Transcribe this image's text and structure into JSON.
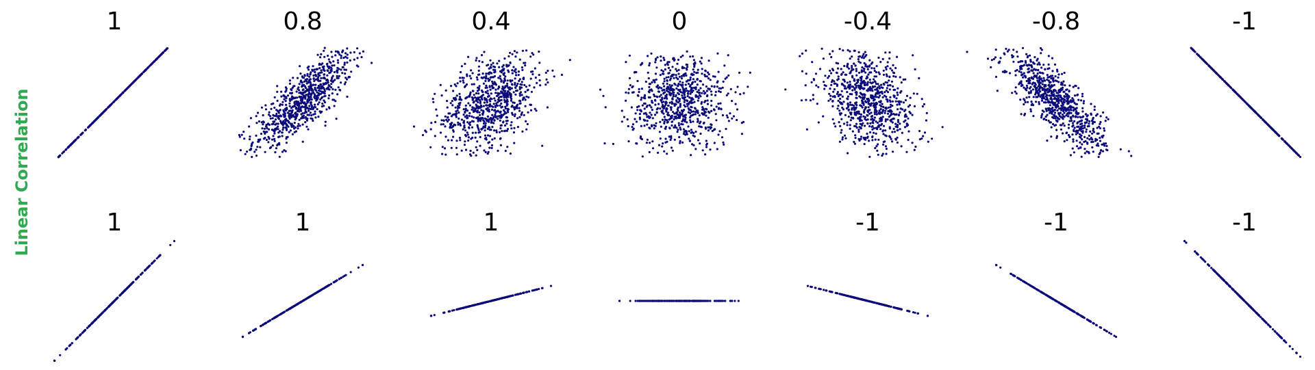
{
  "figure": {
    "side_label": "Linear Correlation",
    "side_label_color": "#2eaa4f",
    "point_color": "#0b0b7a"
  },
  "chart_data": [
    {
      "type": "scatter",
      "group": "scatter-clouds",
      "grid": false,
      "axes_visible": false,
      "panels": [
        {
          "title": "1",
          "correlation": 1,
          "spread": 1.0,
          "n_points": 300
        },
        {
          "title": "0.8",
          "correlation": 0.8,
          "spread": 1.0,
          "n_points": 800
        },
        {
          "title": "0.4",
          "correlation": 0.4,
          "spread": 1.0,
          "n_points": 800
        },
        {
          "title": "0",
          "correlation": 0,
          "spread": 1.0,
          "n_points": 800
        },
        {
          "title": "-0.4",
          "correlation": -0.4,
          "spread": 1.0,
          "n_points": 800
        },
        {
          "title": "-0.8",
          "correlation": -0.8,
          "spread": 1.0,
          "n_points": 800
        },
        {
          "title": "-1",
          "correlation": -1,
          "spread": 1.0,
          "n_points": 300
        }
      ]
    },
    {
      "type": "scatter",
      "group": "line-slopes",
      "grid": false,
      "axes_visible": false,
      "panels": [
        {
          "title": "1",
          "slope": 1.0,
          "n_points": 220
        },
        {
          "title": "1",
          "slope": 0.6,
          "n_points": 220
        },
        {
          "title": "1",
          "slope": 0.25,
          "n_points": 220
        },
        {
          "title": "",
          "slope": 0.0,
          "n_points": 220
        },
        {
          "title": "-1",
          "slope": -0.25,
          "n_points": 220
        },
        {
          "title": "-1",
          "slope": -0.6,
          "n_points": 220
        },
        {
          "title": "-1",
          "slope": -1.0,
          "n_points": 220
        }
      ]
    }
  ]
}
